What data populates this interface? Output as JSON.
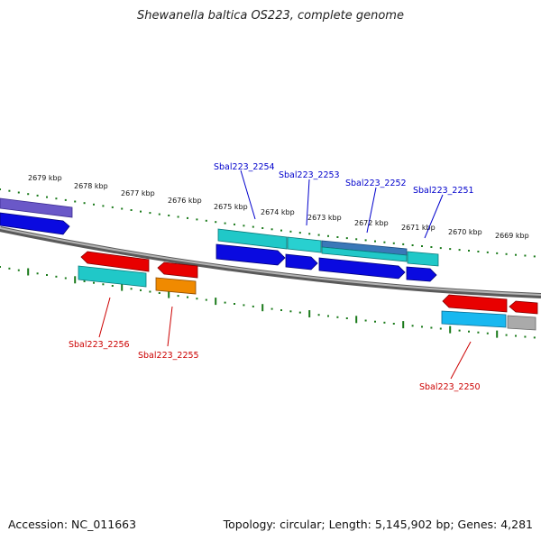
{
  "title": "Shewanella baltica OS223, complete genome",
  "footer": {
    "accession": "Accession: NC_011663",
    "summary": "Topology: circular; Length: 5,145,902 bp; Genes: 4,281"
  },
  "tick_labels": [
    "2679 kbp",
    "2678 kbp",
    "2677 kbp",
    "2676 kbp",
    "2675 kbp",
    "2674 kbp",
    "2673 kbp",
    "2672 kbp",
    "2671 kbp",
    "2670 kbp",
    "2669 kbp"
  ],
  "gene_labels": {
    "forward": [
      "Sbal223_2254",
      "Sbal223_2253",
      "Sbal223_2252",
      "Sbal223_2251"
    ],
    "reverse": [
      "Sbal223_2256",
      "Sbal223_2255",
      "Sbal223_2250"
    ]
  },
  "colors": {
    "forward_label": "#0000cc",
    "reverse_label": "#cc0000",
    "tick": "#1a7a1a",
    "backbone": "#8a8a8a",
    "blue": "#0a0ae0",
    "cyan": "#20c8c8",
    "red": "#e80000",
    "orange": "#f08a00",
    "sky": "#18b8f0",
    "purple": "#6050c0",
    "steel": "#3a78b8",
    "gray": "#aaaaaa"
  }
}
